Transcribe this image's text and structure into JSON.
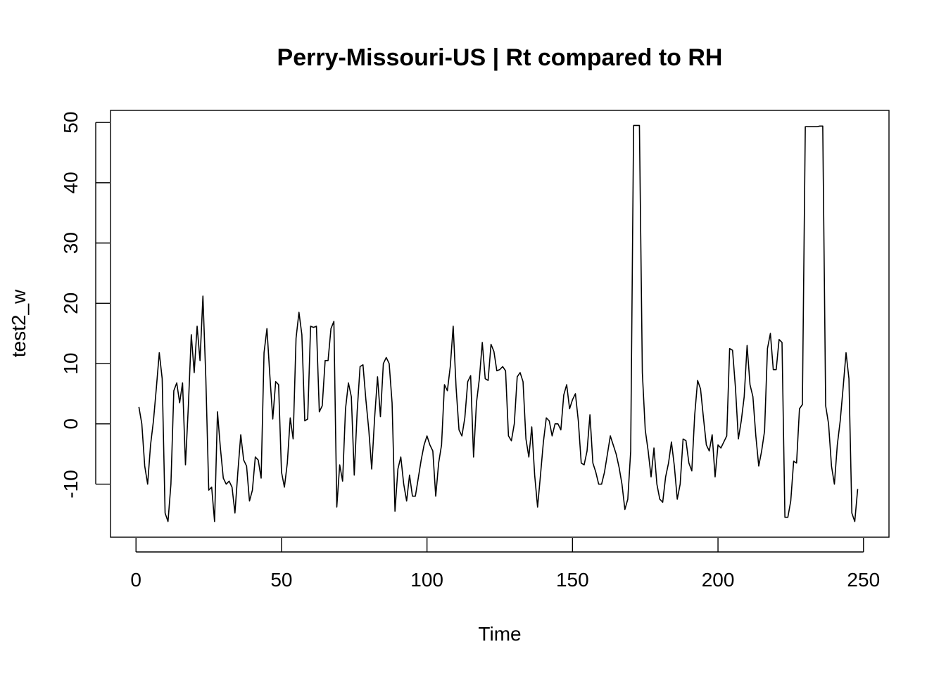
{
  "chart_data": {
    "type": "line",
    "title": "Perry-Missouri-US | Rt compared to RH",
    "xlabel": "Time",
    "ylabel": "test2_w",
    "xlim": [
      -8.76,
      258.76
    ],
    "ylim": [
      -18.8,
      52.0
    ],
    "xticks": [
      0,
      50,
      100,
      150,
      200,
      250
    ],
    "yticks": [
      -10,
      0,
      10,
      20,
      30,
      40,
      50
    ],
    "grid": false,
    "line_color": "#000000",
    "x": [
      1,
      2,
      3,
      4,
      5,
      6,
      7,
      8,
      9,
      10,
      11,
      12,
      13,
      14,
      15,
      16,
      17,
      18,
      19,
      20,
      21,
      22,
      23,
      24,
      25,
      26,
      27,
      28,
      29,
      30,
      31,
      32,
      33,
      34,
      35,
      36,
      37,
      38,
      39,
      40,
      41,
      42,
      43,
      44,
      45,
      46,
      47,
      48,
      49,
      50,
      51,
      52,
      53,
      54,
      55,
      56,
      57,
      58,
      59,
      60,
      61,
      62,
      63,
      64,
      65,
      66,
      67,
      68,
      69,
      70,
      71,
      72,
      73,
      74,
      75,
      76,
      77,
      78,
      79,
      80,
      81,
      82,
      83,
      84,
      85,
      86,
      87,
      88,
      89,
      90,
      91,
      92,
      93,
      94,
      95,
      96,
      97,
      98,
      99,
      100,
      101,
      102,
      103,
      104,
      105,
      106,
      107,
      108,
      109,
      110,
      111,
      112,
      113,
      114,
      115,
      116,
      117,
      118,
      119,
      120,
      121,
      122,
      123,
      124,
      125,
      126,
      127,
      128,
      129,
      130,
      131,
      132,
      133,
      134,
      135,
      136,
      137,
      138,
      139,
      140,
      141,
      142,
      143,
      144,
      145,
      146,
      147,
      148,
      149,
      150,
      151,
      152,
      153,
      154,
      155,
      156,
      157,
      158,
      159,
      160,
      161,
      162,
      163,
      164,
      165,
      166,
      167,
      168,
      169,
      170,
      171,
      172,
      173,
      174,
      175,
      176,
      177,
      178,
      179,
      180,
      181,
      182,
      183,
      184,
      185,
      186,
      187,
      188,
      189,
      190,
      191,
      192,
      193,
      194,
      195,
      196,
      197,
      198,
      199,
      200,
      201,
      202,
      203,
      204,
      205,
      206,
      207,
      208,
      209,
      210,
      211,
      212,
      213,
      214,
      215,
      216,
      217,
      218,
      219,
      220,
      221,
      222,
      223,
      224,
      225,
      226,
      227,
      228,
      229,
      230,
      231,
      232,
      233,
      234,
      235,
      236,
      237,
      238,
      239,
      240,
      241,
      242,
      243,
      244,
      245,
      246,
      247,
      248
    ],
    "y": [
      2.8,
      0,
      -7,
      -10,
      -3.5,
      0.5,
      6,
      11.8,
      7.5,
      -14.8,
      -16.2,
      -10,
      5.5,
      6.8,
      3.5,
      6.8,
      -6.8,
      3,
      14.8,
      8.5,
      16.2,
      10.5,
      21.2,
      7.5,
      -11,
      -10.5,
      -16.2,
      2,
      -4,
      -9,
      -10,
      -9.5,
      -10.5,
      -14.8,
      -8,
      -1.8,
      -6,
      -7,
      -12.8,
      -11,
      -5.5,
      -6,
      -9,
      11.8,
      15.8,
      8,
      0.8,
      7,
      6.5,
      -8,
      -10.5,
      -6.5,
      1,
      -2.5,
      14.2,
      18.5,
      14.8,
      0.5,
      0.8,
      16.2,
      16,
      16.2,
      2,
      3,
      10.5,
      10.5,
      15.8,
      17,
      -13.8,
      -6.8,
      -9.5,
      2.5,
      6.8,
      4.5,
      -8.5,
      2,
      9.5,
      9.8,
      4,
      -1,
      -7.5,
      1,
      7.8,
      1.2,
      10,
      11,
      10,
      3.5,
      -14.5,
      -7.5,
      -5.5,
      -10,
      -12.8,
      -8.5,
      -12,
      -12,
      -9,
      -6,
      -3.5,
      -2,
      -3.5,
      -4.5,
      -12,
      -6.5,
      -3.5,
      6.5,
      5.5,
      9.5,
      16.2,
      6,
      -1,
      -2,
      1,
      7,
      8,
      -5.5,
      3.5,
      7.5,
      13.5,
      7.5,
      7.2,
      13.2,
      12,
      8.8,
      9,
      9.5,
      8.8,
      -2,
      -2.8,
      0,
      7.8,
      8.5,
      7,
      -2.5,
      -5.5,
      -0.5,
      -8.5,
      -13.8,
      -8.5,
      -3,
      1,
      0.5,
      -2,
      0,
      0,
      -1,
      4.8,
      6.5,
      2.5,
      4,
      5,
      0.5,
      -6.5,
      -6.8,
      -4.5,
      1.5,
      -6.5,
      -8,
      -10,
      -10,
      -8,
      -5,
      -2,
      -3.5,
      -5,
      -7.2,
      -10,
      -14.2,
      -12.5,
      -4.5,
      49.5,
      49.5,
      49.5,
      8.5,
      -1,
      -4.5,
      -8.8,
      -4,
      -10,
      -12.5,
      -13,
      -8.8,
      -6.5,
      -3,
      -7,
      -12.5,
      -10,
      -2.5,
      -2.8,
      -6.5,
      -7.8,
      1.5,
      7.2,
      5.8,
      1,
      -3.5,
      -4.5,
      -1.8,
      -8.8,
      -3.5,
      -4,
      -3,
      -2,
      12.5,
      12.2,
      6,
      -2.5,
      0.5,
      4.5,
      13,
      6.5,
      4.5,
      -2,
      -7,
      -4.5,
      -1.2,
      12.5,
      15,
      9,
      9,
      14,
      13.5,
      -15.5,
      -15.5,
      -12.8,
      -6.2,
      -6.5,
      2.5,
      3.2,
      49.3,
      49.3,
      49.3,
      49.3,
      49.3,
      49.4,
      49.4,
      3,
      0,
      -7,
      -10,
      -3.5,
      0.5,
      6,
      11.8,
      7.5,
      -14.8,
      -16.2,
      -10.8
    ]
  }
}
